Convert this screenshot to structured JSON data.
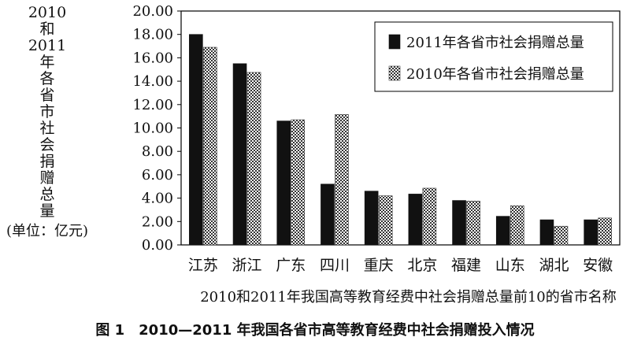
{
  "chart_data": {
    "type": "bar",
    "ylabel_lines": [
      "2010",
      "和",
      "2011",
      "年",
      "各",
      "省",
      "市",
      "社",
      "会",
      "捐",
      "赠",
      "总",
      "量"
    ],
    "ylabel_unit": "(单位：亿元)",
    "xlabel": "2010和2011年我国高等教育经费中社会捐赠总量前10的省市名称",
    "categories": [
      "江苏",
      "浙江",
      "广东",
      "四川",
      "重庆",
      "北京",
      "福建",
      "山东",
      "湖北",
      "安徽"
    ],
    "series": [
      {
        "name": "2011年各省市社会捐赠总量",
        "values": [
          18.0,
          15.5,
          10.6,
          5.2,
          4.6,
          4.35,
          3.8,
          2.45,
          2.15,
          2.15
        ],
        "color": "#111111",
        "pattern": "solid"
      },
      {
        "name": "2010年各省市社会捐赠总量",
        "values": [
          16.9,
          14.75,
          10.7,
          11.15,
          4.2,
          4.85,
          3.75,
          3.35,
          1.6,
          2.3
        ],
        "color": "#555555",
        "pattern": "checker"
      }
    ],
    "ylim": [
      0,
      20
    ],
    "yticks": [
      "0.00",
      "2.00",
      "4.00",
      "6.00",
      "8.00",
      "10.00",
      "12.00",
      "14.00",
      "16.00",
      "18.00",
      "20.00"
    ],
    "grid": false,
    "legend_position": "top-right"
  },
  "caption": "图 1　2010—2011 年我国各省市高等教育经费中社会捐赠投入情况"
}
